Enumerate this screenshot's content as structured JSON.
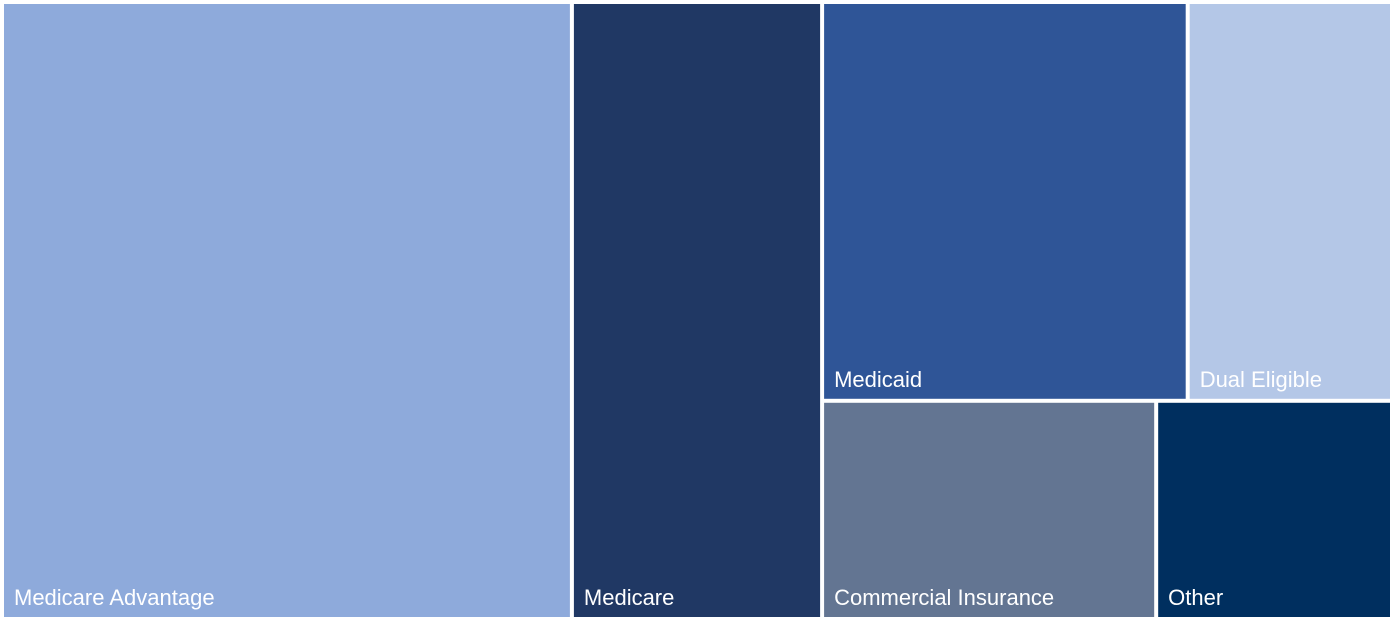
{
  "chart_data": {
    "type": "treemap",
    "categories": [
      "Medicare Advantage",
      "Medicare",
      "Medicaid",
      "Dual Eligible",
      "Commercial Insurance",
      "Other"
    ],
    "values": [
      41,
      18,
      17,
      9.5,
      8.5,
      6
    ],
    "colors": [
      "#8eaadb",
      "#203864",
      "#2f5597",
      "#b4c7e7",
      "#637592",
      "#002f5f"
    ]
  }
}
